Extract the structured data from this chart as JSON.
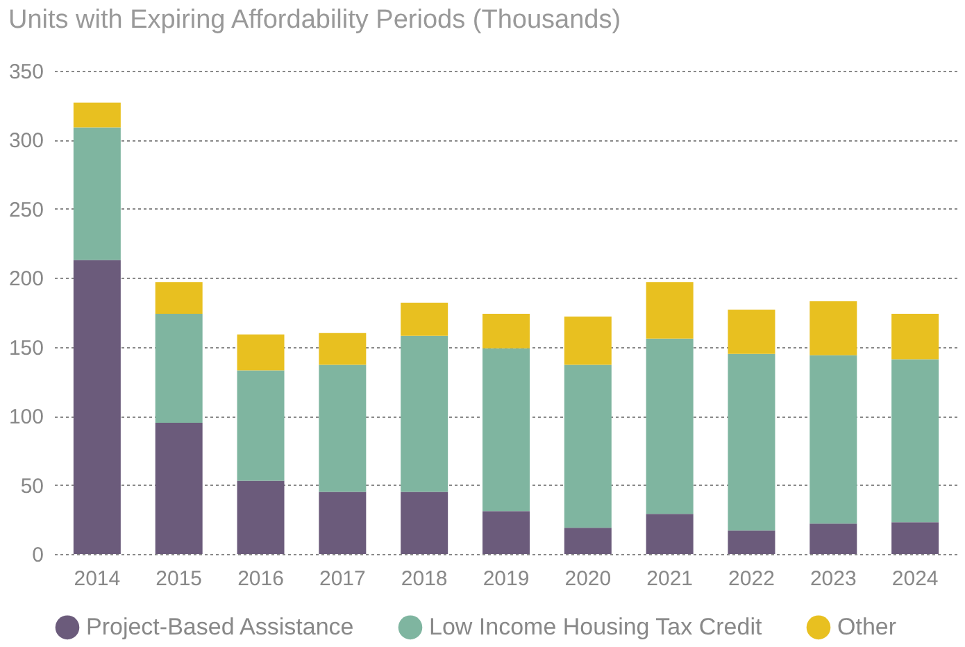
{
  "chart_data": {
    "type": "bar",
    "stacked": true,
    "title": "Units with Expiring Affordability Periods (Thousands)",
    "categories": [
      "2014",
      "2015",
      "2016",
      "2017",
      "2018",
      "2019",
      "2020",
      "2021",
      "2022",
      "2023",
      "2024"
    ],
    "series": [
      {
        "name": "Project-Based Assistance",
        "color": "#6b5b7b",
        "values": [
          213,
          95,
          53,
          45,
          45,
          31,
          19,
          29,
          17,
          22,
          23
        ]
      },
      {
        "name": "Low Income Housing Tax Credit",
        "color": "#7fb5a0",
        "values": [
          96,
          79,
          80,
          92,
          113,
          118,
          118,
          127,
          128,
          122,
          118
        ]
      },
      {
        "name": "Other",
        "color": "#e8c020",
        "values": [
          18,
          23,
          26,
          23,
          24,
          25,
          35,
          41,
          32,
          39,
          33
        ]
      }
    ],
    "ylim": [
      0,
      350
    ],
    "yticks": [
      0,
      50,
      100,
      150,
      200,
      250,
      300,
      350
    ],
    "grid": "y",
    "legend": "bottom"
  }
}
